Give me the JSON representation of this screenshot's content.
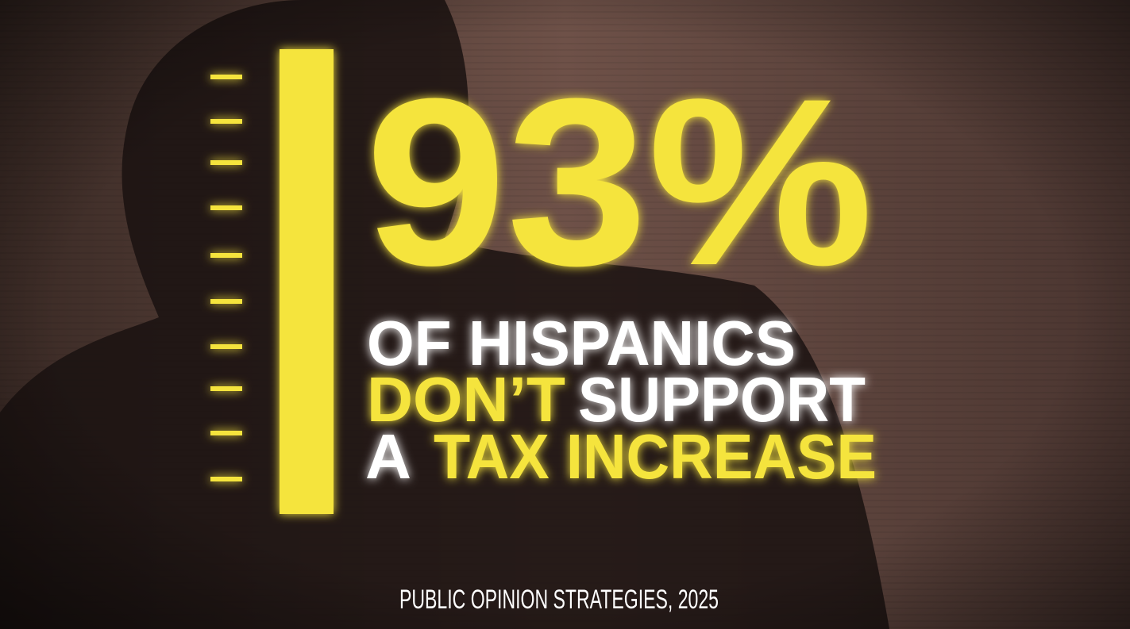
{
  "headline": "93%",
  "statement": {
    "line1": "OF HISPANICS",
    "line2": {
      "part1": "DON’T",
      "part2": "SUPPORT"
    },
    "line3": {
      "part1": "A",
      "part2": "TAX INCREASE"
    }
  },
  "source": "PUBLIC OPINION STRATEGIES, 2025"
}
